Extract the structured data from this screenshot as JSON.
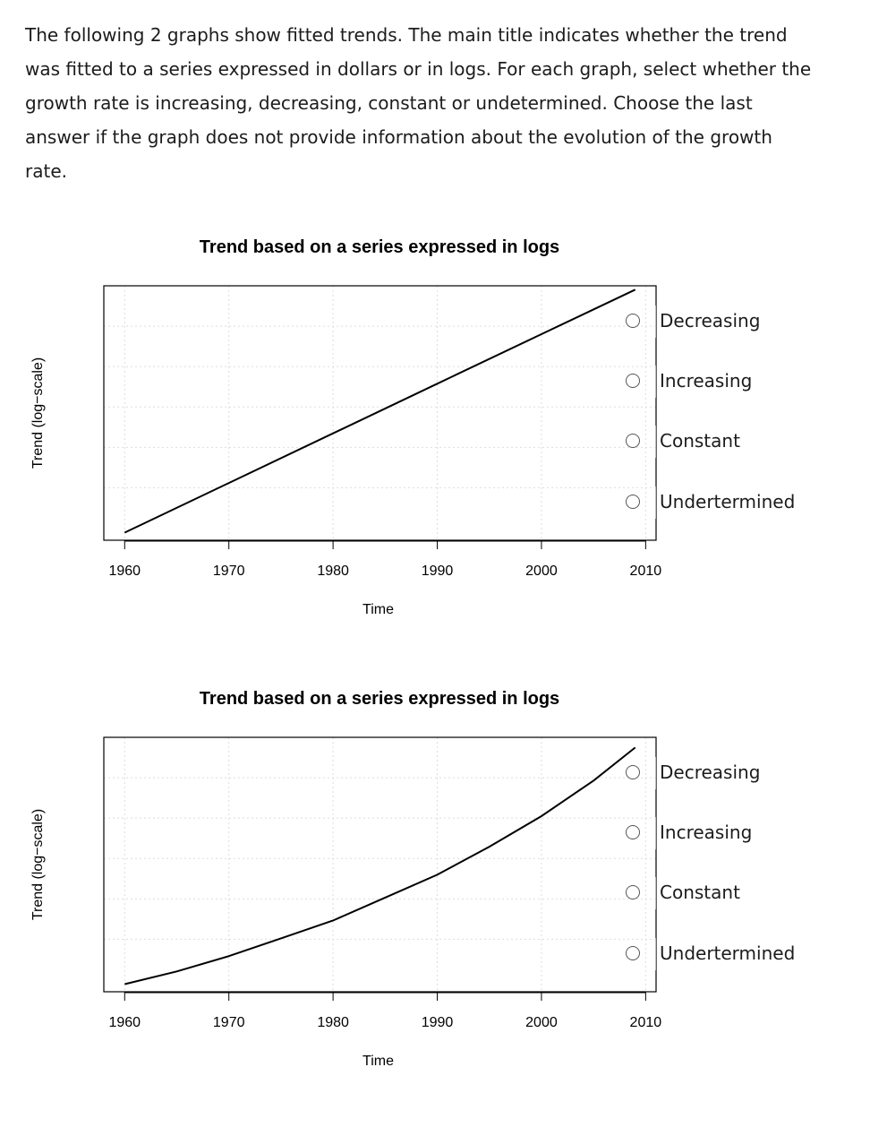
{
  "intro_text": "The following 2 graphs show fitted trends. The main title indicates whether the trend was fitted to a series expressed in dollars or in logs. For each graph, select whether the growth rate is increasing, decreasing, constant or undetermined. Choose the last answer if the graph does not provide information about the evolution of the growth rate.",
  "questions": [
    {
      "options": [
        "Decreasing",
        "Increasing",
        "Constant",
        "Undertermined"
      ],
      "selected": null
    },
    {
      "options": [
        "Decreasing",
        "Increasing",
        "Constant",
        "Undertermined"
      ],
      "selected": null
    }
  ],
  "chart_data": [
    {
      "type": "line",
      "title": "Trend based on a series expressed in logs",
      "xlabel": "Time",
      "ylabel": "Trend (log−scale)",
      "xticks": [
        "1960",
        "1970",
        "1980",
        "1990",
        "2000",
        "2010"
      ],
      "xlim": [
        1958,
        2011
      ],
      "ylim": [
        0,
        1
      ],
      "grid": true,
      "series": [
        {
          "x": [
            1960,
            1970,
            1980,
            1990,
            2000,
            2009
          ],
          "y": [
            0.03,
            0.225,
            0.42,
            0.615,
            0.81,
            0.985
          ]
        }
      ]
    },
    {
      "type": "line",
      "title": "Trend based on a series expressed in logs",
      "xlabel": "Time",
      "ylabel": "Trend (log−scale)",
      "xticks": [
        "1960",
        "1970",
        "1980",
        "1990",
        "2000",
        "2010"
      ],
      "xlim": [
        1958,
        2011
      ],
      "ylim": [
        0,
        1
      ],
      "grid": true,
      "series": [
        {
          "x": [
            1960,
            1965,
            1970,
            1975,
            1980,
            1985,
            1990,
            1995,
            2000,
            2005,
            2009
          ],
          "y": [
            0.03,
            0.08,
            0.14,
            0.21,
            0.28,
            0.37,
            0.46,
            0.57,
            0.69,
            0.83,
            0.96
          ]
        }
      ]
    }
  ]
}
